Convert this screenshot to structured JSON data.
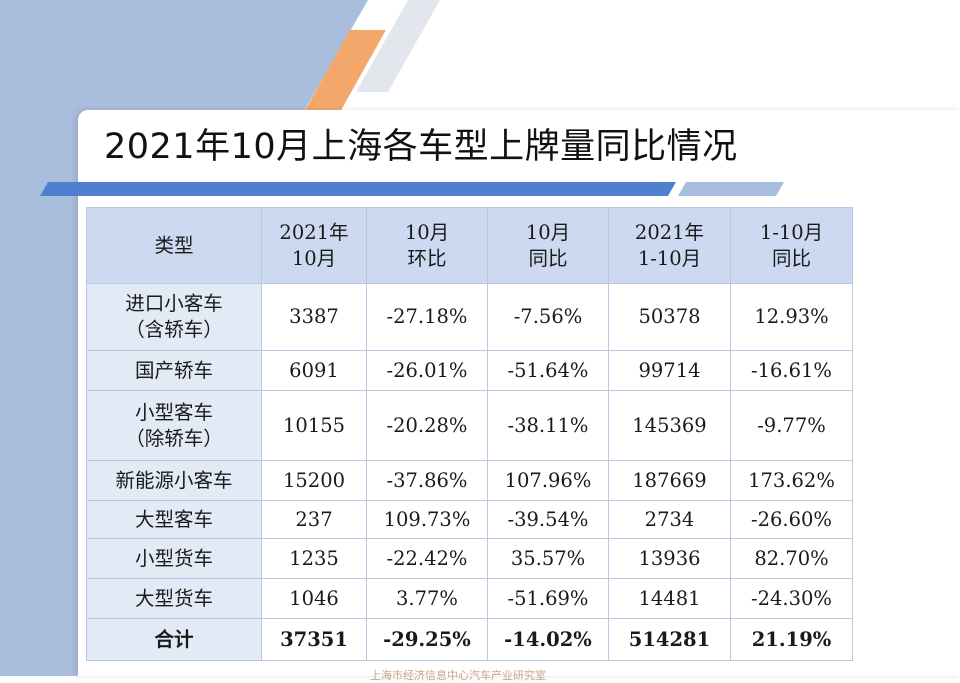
{
  "title": "2021年10月上海各车型上牌量同比情况",
  "colors": {
    "accent_blue": "#4f7fd0",
    "accent_orange": "#f4a76a",
    "header_bg": "#ccd9f0",
    "first_col_bg": "#e2eaf6"
  },
  "table": {
    "headers": [
      {
        "line1": "类型",
        "line2": ""
      },
      {
        "line1": "2021年",
        "line2": "10月"
      },
      {
        "line1": "10月",
        "line2": "环比"
      },
      {
        "line1": "10月",
        "line2": "同比"
      },
      {
        "line1": "2021年",
        "line2": "1-10月"
      },
      {
        "line1": "1-10月",
        "line2": "同比"
      }
    ],
    "rows": [
      {
        "type_line1": "进口小客车",
        "type_line2": "（含轿车）",
        "oct": "3387",
        "mom": "-27.18%",
        "yoy": "-7.56%",
        "ytd": "50378",
        "ytd_yoy": "12.93%"
      },
      {
        "type_line1": "国产轿车",
        "type_line2": "",
        "oct": "6091",
        "mom": "-26.01%",
        "yoy": "-51.64%",
        "ytd": "99714",
        "ytd_yoy": "-16.61%"
      },
      {
        "type_line1": "小型客车",
        "type_line2": "（除轿车）",
        "oct": "10155",
        "mom": "-20.28%",
        "yoy": "-38.11%",
        "ytd": "145369",
        "ytd_yoy": "-9.77%"
      },
      {
        "type_line1": "新能源小客车",
        "type_line2": "",
        "oct": "15200",
        "mom": "-37.86%",
        "yoy": "107.96%",
        "ytd": "187669",
        "ytd_yoy": "173.62%"
      },
      {
        "type_line1": "大型客车",
        "type_line2": "",
        "oct": "237",
        "mom": "109.73%",
        "yoy": "-39.54%",
        "ytd": "2734",
        "ytd_yoy": "-26.60%"
      },
      {
        "type_line1": "小型货车",
        "type_line2": "",
        "oct": "1235",
        "mom": "-22.42%",
        "yoy": "35.57%",
        "ytd": "13936",
        "ytd_yoy": "82.70%"
      },
      {
        "type_line1": "大型货车",
        "type_line2": "",
        "oct": "1046",
        "mom": "3.77%",
        "yoy": "-51.69%",
        "ytd": "14481",
        "ytd_yoy": "-24.30%"
      }
    ],
    "total": {
      "type_line1": "合计",
      "oct": "37351",
      "mom": "-29.25%",
      "yoy": "-14.02%",
      "ytd": "514281",
      "ytd_yoy": "21.19%"
    }
  },
  "footer": "上海市经济信息中心汽车产业研究室"
}
